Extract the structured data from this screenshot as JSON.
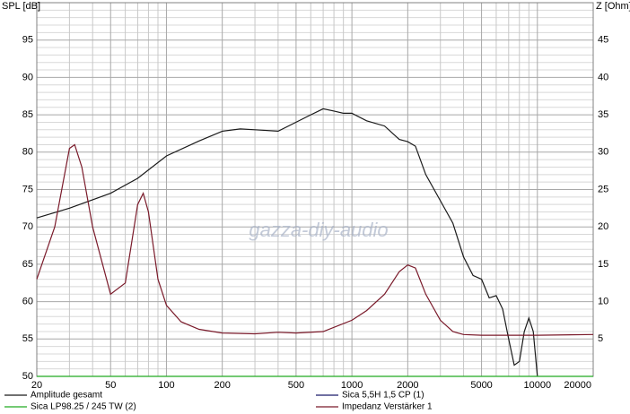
{
  "chart_data": {
    "type": "line",
    "y_label": "SPL [dB]",
    "y2_label": "Z [Ohm]",
    "watermark": "gazza-diy-audio",
    "xscale": "log",
    "grid": true,
    "xlim": [
      20,
      20000
    ],
    "ylim": [
      50,
      100
    ],
    "y2lim": [
      0,
      50
    ],
    "xticks": [
      20,
      50,
      100,
      200,
      500,
      1000,
      2000,
      5000,
      10000,
      20000
    ],
    "yticks": [
      50,
      55,
      60,
      65,
      70,
      75,
      80,
      85,
      90,
      95
    ],
    "y2ticks": [
      5,
      10,
      15,
      20,
      25,
      30,
      35,
      40,
      45
    ],
    "x_minor_grid": [
      30,
      40,
      60,
      70,
      80,
      90,
      300,
      400,
      600,
      700,
      800,
      900,
      3000,
      4000,
      6000,
      7000,
      8000,
      9000
    ],
    "y_minor_grid": [
      51,
      52,
      53,
      54,
      56,
      57,
      58,
      59,
      61,
      62,
      63,
      64,
      66,
      67,
      68,
      69,
      71,
      72,
      73,
      74,
      76,
      77,
      78,
      79,
      81,
      82,
      83,
      84,
      86,
      87,
      88,
      89,
      91,
      92,
      93,
      94,
      96,
      97,
      98,
      99
    ],
    "series": [
      {
        "name": "Amplitude gesamt",
        "color": "#1a1a1a",
        "x": [
          20,
          30,
          50,
          70,
          100,
          150,
          200,
          250,
          300,
          400,
          500,
          600,
          700,
          800,
          900,
          1000,
          1200,
          1500,
          1800,
          2000,
          2200,
          2500,
          3000,
          3500,
          4000,
          4500,
          5000,
          5500,
          6000,
          6500,
          7000,
          7500,
          8000,
          8500,
          9000,
          9500,
          10000
        ],
        "values": [
          71.2,
          72.5,
          74.5,
          76.5,
          79.5,
          81.5,
          82.8,
          83.1,
          83.0,
          82.8,
          84.0,
          85.0,
          85.8,
          85.5,
          85.2,
          85.2,
          84.2,
          83.5,
          81.7,
          81.4,
          80.8,
          77.0,
          73.5,
          70.5,
          66.0,
          63.5,
          63.0,
          60.5,
          60.8,
          59.0,
          55.0,
          51.5,
          52.0,
          56.0,
          57.8,
          56.0,
          50.0
        ]
      },
      {
        "name": "Sica LP98.25 / 245 TW (2)",
        "color": "#22aa22",
        "x": [
          20,
          20000
        ],
        "values": [
          50,
          50
        ]
      },
      {
        "name": "Sica 5,5H 1,5 CP (1)",
        "color": "#1a1a6a",
        "x": [],
        "values": []
      },
      {
        "name": "Impedanz Verstärker 1",
        "color": "#7a1a2a",
        "axis": "y2",
        "x": [
          20,
          25,
          30,
          32,
          35,
          40,
          50,
          60,
          70,
          75,
          80,
          90,
          100,
          120,
          150,
          200,
          300,
          400,
          500,
          700,
          1000,
          1200,
          1500,
          1800,
          2000,
          2200,
          2500,
          3000,
          3500,
          4000,
          5000,
          6000,
          10000,
          20000
        ],
        "values": [
          13,
          20,
          30.5,
          31,
          28,
          20,
          11,
          12.5,
          23,
          24.5,
          22,
          13,
          9.5,
          7.3,
          6.3,
          5.8,
          5.7,
          5.9,
          5.8,
          6.0,
          7.5,
          8.8,
          11,
          14,
          14.9,
          14.5,
          11,
          7.5,
          6.0,
          5.6,
          5.5,
          5.5,
          5.5,
          5.6
        ]
      }
    ]
  }
}
